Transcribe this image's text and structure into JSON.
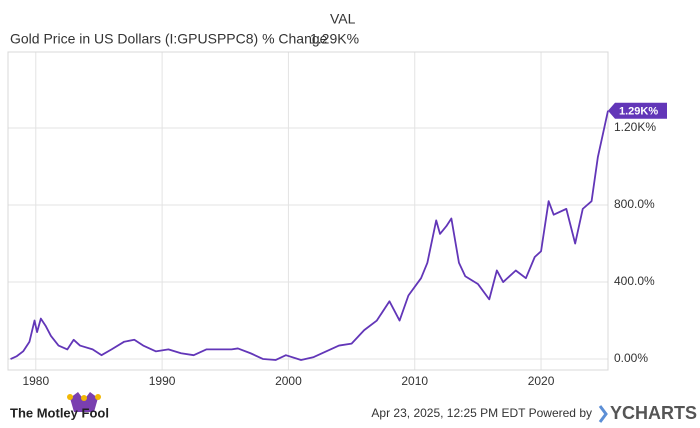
{
  "chart_data": {
    "type": "line",
    "legend_header": "VAL",
    "legend_value": "1.29K%",
    "series": [
      {
        "name": "Gold Price in US Dollars (I:GPUSPPC8) % Change",
        "color": "#6236b8",
        "x": [
          1978.0,
          1978.5,
          1979.0,
          1979.5,
          1979.9,
          1980.1,
          1980.4,
          1980.8,
          1981.2,
          1981.8,
          1982.5,
          1983.0,
          1983.5,
          1984.5,
          1985.2,
          1986.0,
          1987.0,
          1987.8,
          1988.5,
          1989.5,
          1990.5,
          1991.5,
          1992.5,
          1993.5,
          1994.5,
          1995.5,
          1996.0,
          1997.0,
          1998.0,
          1999.0,
          1999.8,
          2001.0,
          2002.0,
          2003.0,
          2004.0,
          2005.0,
          2006.0,
          2007.0,
          2008.0,
          2008.8,
          2009.5,
          2010.5,
          2011.0,
          2011.7,
          2012.0,
          2012.5,
          2012.9,
          2013.5,
          2014.0,
          2015.0,
          2015.9,
          2016.5,
          2017.0,
          2018.0,
          2018.8,
          2019.5,
          2020.0,
          2020.6,
          2021.0,
          2022.0,
          2022.7,
          2023.3,
          2024.0,
          2024.5,
          2025.0,
          2025.3
        ],
        "values": [
          0,
          15,
          40,
          90,
          200,
          140,
          210,
          170,
          120,
          70,
          50,
          100,
          70,
          50,
          20,
          50,
          90,
          100,
          70,
          40,
          50,
          30,
          20,
          50,
          50,
          50,
          55,
          30,
          0,
          -5,
          20,
          -5,
          10,
          40,
          70,
          80,
          150,
          200,
          300,
          200,
          330,
          420,
          500,
          720,
          650,
          690,
          730,
          500,
          430,
          390,
          310,
          460,
          400,
          460,
          420,
          530,
          560,
          820,
          750,
          780,
          600,
          780,
          820,
          1050,
          1200,
          1290
        ],
        "value_labels": [
          null,
          null,
          null,
          null,
          null,
          null,
          null,
          null,
          null,
          null,
          null,
          null,
          null,
          null,
          null,
          null,
          null,
          null,
          null,
          null,
          null,
          null,
          null,
          null,
          null,
          null,
          null,
          null,
          null,
          null,
          null,
          null,
          null,
          null,
          null,
          null,
          null,
          null,
          null,
          null,
          null,
          null,
          null,
          null,
          null,
          null,
          null,
          null,
          null,
          null,
          null,
          null,
          null,
          null,
          null,
          null,
          null,
          null,
          null,
          null,
          null,
          null,
          null,
          null,
          null,
          "1.29K%"
        ]
      }
    ],
    "xlim": [
      1977.8,
      2025.3
    ],
    "xticks": [
      1980,
      1990,
      2000,
      2010,
      2020
    ],
    "ylim": [
      -57,
      1595
    ],
    "yticks": [
      {
        "value": 0,
        "label": "0.00%"
      },
      {
        "value": 400,
        "label": "400.0%"
      },
      {
        "value": 800,
        "label": "800.0%"
      },
      {
        "value": 1200,
        "label": "1.20K%"
      }
    ],
    "grid": true
  },
  "footer": {
    "brand": "The Motley Fool",
    "timestamp": "Apr 23, 2025, 12:25 PM EDT Powered by",
    "source": "YCHARTS"
  }
}
